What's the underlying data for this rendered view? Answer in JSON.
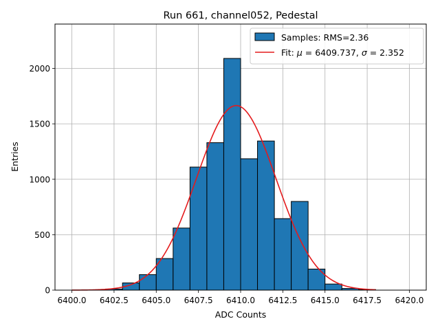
{
  "chart_data": {
    "type": "bar",
    "title": "Run 661, channel052, Pedestal",
    "xlabel": "ADC Counts",
    "ylabel": "Entries",
    "xlim": [
      6399,
      6421
    ],
    "ylim": [
      0,
      2400
    ],
    "xticks": [
      6400.0,
      6402.5,
      6405.0,
      6407.5,
      6410.0,
      6412.5,
      6415.0,
      6417.5,
      6420.0
    ],
    "xtick_labels": [
      "6400.0",
      "6402.5",
      "6405.0",
      "6407.5",
      "6410.0",
      "6412.5",
      "6415.0",
      "6417.5",
      "6420.0"
    ],
    "yticks": [
      0,
      500,
      1000,
      1500,
      2000
    ],
    "ytick_labels": [
      "0",
      "500",
      "1000",
      "1500",
      "2000"
    ],
    "grid": true,
    "legend_position": "top-right",
    "histogram": {
      "name": "Samples: RMS=2.36",
      "color": "#1f77b4",
      "edge_color": "#000000",
      "bin_edges": [
        6402,
        6403,
        6404,
        6405,
        6406,
        6407,
        6408,
        6409,
        6410,
        6411,
        6412,
        6413,
        6414,
        6415,
        6416,
        6417,
        6418
      ],
      "counts": [
        10,
        65,
        140,
        285,
        560,
        1110,
        1330,
        2090,
        1185,
        1345,
        645,
        800,
        190,
        55,
        15,
        5
      ]
    },
    "fit": {
      "name": "Fit: μ = 6409.737, σ = 2.352",
      "label_prefix": "Fit: ",
      "mu_symbol": "μ",
      "mu_text": " = 6409.737, ",
      "sigma_symbol": "σ",
      "sigma_text": " = 2.352",
      "color": "#e41a1c",
      "mu": 6409.737,
      "sigma": 2.352,
      "amplitude": 1665,
      "x_range": [
        6400,
        6418
      ]
    }
  }
}
